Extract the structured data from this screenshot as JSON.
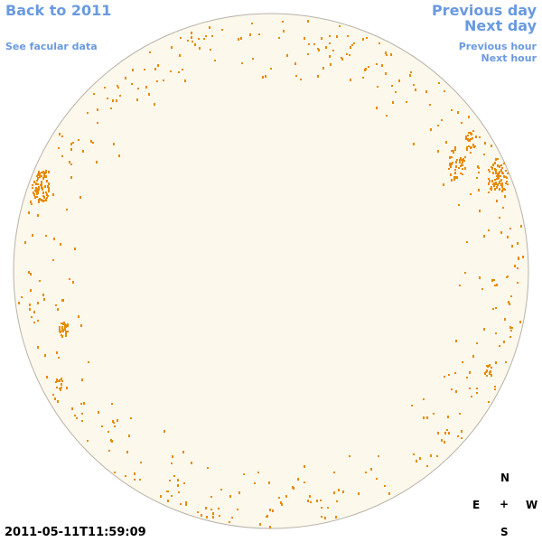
{
  "nav": {
    "back": "Back to 2011",
    "facular": "See facular data",
    "previous_day": "Previous day",
    "next_day": "Next day",
    "previous_hour": "Previous hour",
    "next_hour": "Next hour"
  },
  "compass": {
    "north": "N",
    "east": "E",
    "center": "+",
    "west": "W",
    "south": "S"
  },
  "timestamp": "2011-05-11T11:59:09"
}
